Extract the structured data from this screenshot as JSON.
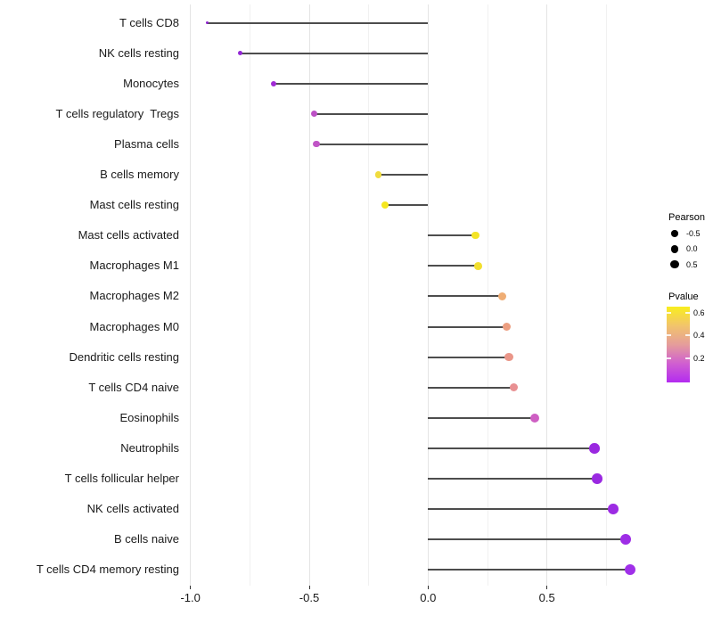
{
  "chart_data": {
    "type": "scatter",
    "variant": "horizontal-lollipop",
    "title": "",
    "xlabel": "",
    "ylabel": "",
    "grid": "vertical-only",
    "x_axis": {
      "range": [
        -1.025,
        0.94
      ],
      "major_ticks": [
        -1.0,
        -0.5,
        0.0,
        0.5
      ],
      "major_tick_labels": [
        "-1.0",
        "-0.5",
        "0.0",
        "0.5"
      ],
      "minor_ticks": [
        -0.75,
        -0.25,
        0.25,
        0.75
      ],
      "baseline": 0.0
    },
    "points": [
      {
        "label": "T cells CD8",
        "pearson": -0.93,
        "dot_color": "#8D23CC",
        "dot_radius": 1.6
      },
      {
        "label": "NK cells resting",
        "pearson": -0.79,
        "dot_color": "#9327D5",
        "dot_radius": 2.5
      },
      {
        "label": "Monocytes",
        "pearson": -0.65,
        "dot_color": "#A02BD4",
        "dot_radius": 3.2
      },
      {
        "label": "T cells regulatory  Tregs",
        "pearson": -0.48,
        "dot_color": "#BC50C5",
        "dot_radius": 3.5
      },
      {
        "label": "Plasma cells",
        "pearson": -0.47,
        "dot_color": "#C055C6",
        "dot_radius": 3.6
      },
      {
        "label": "B cells memory",
        "pearson": -0.21,
        "dot_color": "#F0DC3E",
        "dot_radius": 3.8
      },
      {
        "label": "Mast cells resting",
        "pearson": -0.18,
        "dot_color": "#F5E71F",
        "dot_radius": 4.0
      },
      {
        "label": "Mast cells activated",
        "pearson": 0.2,
        "dot_color": "#F4E426",
        "dot_radius": 4.3
      },
      {
        "label": "Macrophages M1",
        "pearson": 0.21,
        "dot_color": "#F2DF2F",
        "dot_radius": 4.4
      },
      {
        "label": "Macrophages M2",
        "pearson": 0.31,
        "dot_color": "#EFAD74",
        "dot_radius": 4.5
      },
      {
        "label": "Macrophages M0",
        "pearson": 0.33,
        "dot_color": "#EC9E80",
        "dot_radius": 4.6
      },
      {
        "label": "Dendritic cells resting",
        "pearson": 0.34,
        "dot_color": "#EA9689",
        "dot_radius": 4.65
      },
      {
        "label": "T cells CD4 naive",
        "pearson": 0.36,
        "dot_color": "#E89092",
        "dot_radius": 4.7
      },
      {
        "label": "Eosinophils",
        "pearson": 0.45,
        "dot_color": "#CE5FC3",
        "dot_radius": 5.0
      },
      {
        "label": "Neutrophils",
        "pearson": 0.7,
        "dot_color": "#9A28E0",
        "dot_radius": 5.8
      },
      {
        "label": "T cells follicular helper",
        "pearson": 0.71,
        "dot_color": "#9A29E1",
        "dot_radius": 5.85
      },
      {
        "label": "NK cells activated",
        "pearson": 0.78,
        "dot_color": "#9C2BE3",
        "dot_radius": 5.9
      },
      {
        "label": "B cells naive",
        "pearson": 0.83,
        "dot_color": "#9E2DE6",
        "dot_radius": 6.05
      },
      {
        "label": "T cells CD4 memory resting",
        "pearson": 0.85,
        "dot_color": "#A030E9",
        "dot_radius": 6.2
      }
    ],
    "legend": {
      "position": "right",
      "size": {
        "title": "Pearson",
        "dot_color": "#000000",
        "entries": [
          {
            "label": "-0.5",
            "radius": 3.7
          },
          {
            "label": "0.0",
            "radius": 4.3
          },
          {
            "label": "0.5",
            "radius": 4.7
          }
        ]
      },
      "color": {
        "title": "Pvalue",
        "tick_labels": [
          "0.6",
          "0.4",
          "0.2"
        ],
        "gradient_stops_top_to_bottom": [
          "#F9EE1E",
          "#F2C46B",
          "#E59D9B",
          "#D05FD0",
          "#B32BF0"
        ]
      }
    },
    "style": {
      "stem_color": "#4D4D4D",
      "grid_major_color": "#E4E4E4",
      "grid_minor_color": "#F1F1F1",
      "axis_text_color": "#1a1a1a",
      "background": "#FFFFFF"
    }
  }
}
